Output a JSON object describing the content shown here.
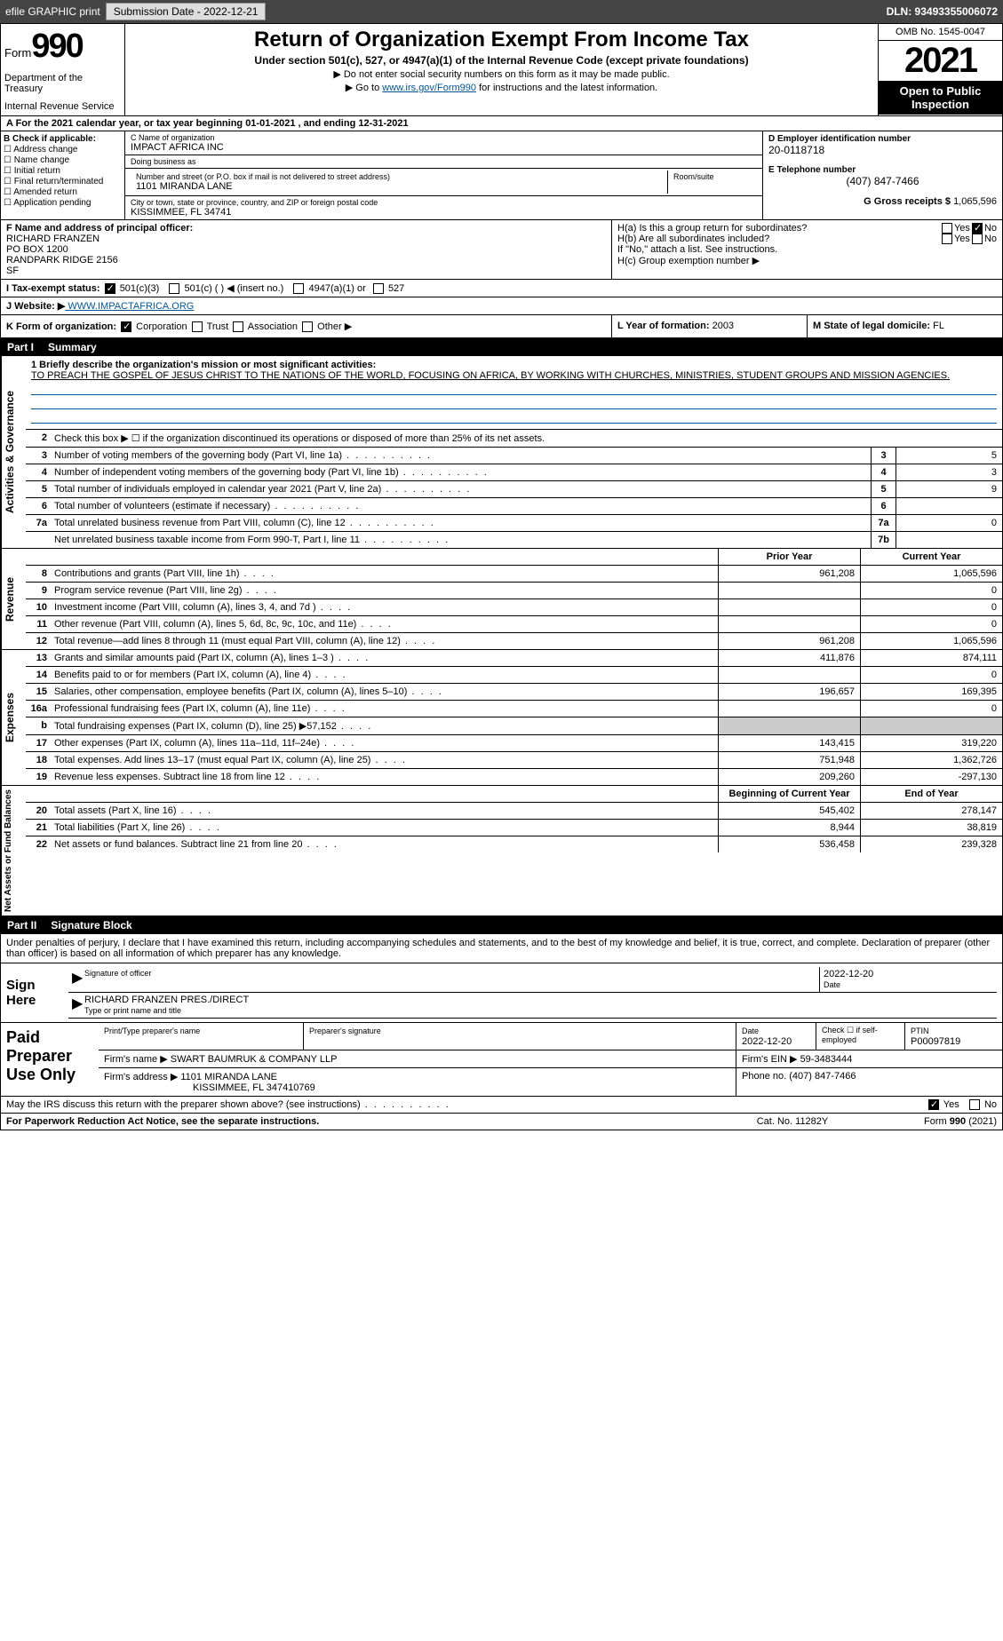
{
  "topbar": {
    "efile": "efile GRAPHIC print",
    "submission_label": "Submission Date - 2022-12-21",
    "dln_label": "DLN: 93493355006072"
  },
  "header": {
    "form_label": "Form",
    "form_number": "990",
    "dept": "Department of the Treasury",
    "irs": "Internal Revenue Service",
    "title": "Return of Organization Exempt From Income Tax",
    "sub": "Under section 501(c), 527, or 4947(a)(1) of the Internal Revenue Code (except private foundations)",
    "note1": "▶ Do not enter social security numbers on this form as it may be made public.",
    "note2_pre": "▶ Go to ",
    "note2_link": "www.irs.gov/Form990",
    "note2_post": " for instructions and the latest information.",
    "omb": "OMB No. 1545-0047",
    "year": "2021",
    "public": "Open to Public Inspection"
  },
  "rowA": "A For the 2021 calendar year, or tax year beginning 01-01-2021   , and ending 12-31-2021",
  "entityB": {
    "title": "B Check if applicable:",
    "items": [
      "Address change",
      "Name change",
      "Initial return",
      "Final return/terminated",
      "Amended return",
      "Application pending"
    ]
  },
  "entityC": {
    "name_lbl": "C Name of organization",
    "name": "IMPACT AFRICA INC",
    "dba_lbl": "Doing business as",
    "dba": "",
    "street_lbl": "Number and street (or P.O. box if mail is not delivered to street address)",
    "street": "1101 MIRANDA LANE",
    "room_lbl": "Room/suite",
    "city_lbl": "City or town, state or province, country, and ZIP or foreign postal code",
    "city": "KISSIMMEE, FL  34741"
  },
  "entityDEG": {
    "d_lbl": "D Employer identification number",
    "d": "20-0118718",
    "e_lbl": "E Telephone number",
    "e": "(407) 847-7466",
    "g_lbl": "G Gross receipts $",
    "g": "1,065,596"
  },
  "rowF": {
    "lbl": "F  Name and address of principal officer:",
    "name": "RICHARD FRANZEN",
    "addr1": "PO BOX 1200",
    "addr2": "RANDPARK RIDGE    2156",
    "addr3": "SF"
  },
  "rowH": {
    "a": "H(a)  Is this a group return for subordinates?",
    "b": "H(b)  Are all subordinates included?",
    "note": "If \"No,\" attach a list. See instructions.",
    "c": "H(c)  Group exemption number ▶",
    "yes": "Yes",
    "no": "No"
  },
  "rowI": {
    "lbl": "I   Tax-exempt status:",
    "opts": [
      "501(c)(3)",
      "501(c) (  ) ◀ (insert no.)",
      "4947(a)(1) or",
      "527"
    ]
  },
  "rowJ": {
    "lbl": "J   Website: ▶",
    "val": " WWW.IMPACTAFRICA.ORG"
  },
  "rowK": {
    "k1_lbl": "K Form of organization:",
    "k1_opts": [
      "Corporation",
      "Trust",
      "Association",
      "Other ▶"
    ],
    "k2_lbl": "L Year of formation:",
    "k2": "2003",
    "k3_lbl": "M State of legal domicile:",
    "k3": "FL"
  },
  "part1": {
    "lbl": "Part I",
    "title": "Summary"
  },
  "governance": {
    "vtab": "Activities & Governance",
    "l1_lbl": "1  Briefly describe the organization's mission or most significant activities:",
    "l1": "TO PREACH THE GOSPEL OF JESUS CHRIST TO THE NATIONS OF THE WORLD, FOCUSING ON AFRICA, BY WORKING WITH CHURCHES, MINISTRIES, STUDENT GROUPS AND MISSION AGENCIES.",
    "l2": "Check this box ▶ ☐  if the organization discontinued its operations or disposed of more than 25% of its net assets.",
    "rows": [
      {
        "n": "3",
        "t": "Number of voting members of the governing body (Part VI, line 1a)",
        "b": "3",
        "v": "5"
      },
      {
        "n": "4",
        "t": "Number of independent voting members of the governing body (Part VI, line 1b)",
        "b": "4",
        "v": "3"
      },
      {
        "n": "5",
        "t": "Total number of individuals employed in calendar year 2021 (Part V, line 2a)",
        "b": "5",
        "v": "9"
      },
      {
        "n": "6",
        "t": "Total number of volunteers (estimate if necessary)",
        "b": "6",
        "v": ""
      },
      {
        "n": "7a",
        "t": "Total unrelated business revenue from Part VIII, column (C), line 12",
        "b": "7a",
        "v": "0"
      },
      {
        "n": "",
        "t": "Net unrelated business taxable income from Form 990-T, Part I, line 11",
        "b": "7b",
        "v": ""
      }
    ]
  },
  "revenue": {
    "vtab": "Revenue",
    "hd1": "Prior Year",
    "hd2": "Current Year",
    "rows": [
      {
        "n": "8",
        "t": "Contributions and grants (Part VIII, line 1h)",
        "c1": "961,208",
        "c2": "1,065,596"
      },
      {
        "n": "9",
        "t": "Program service revenue (Part VIII, line 2g)",
        "c1": "",
        "c2": "0"
      },
      {
        "n": "10",
        "t": "Investment income (Part VIII, column (A), lines 3, 4, and 7d )",
        "c1": "",
        "c2": "0"
      },
      {
        "n": "11",
        "t": "Other revenue (Part VIII, column (A), lines 5, 6d, 8c, 9c, 10c, and 11e)",
        "c1": "",
        "c2": "0"
      },
      {
        "n": "12",
        "t": "Total revenue—add lines 8 through 11 (must equal Part VIII, column (A), line 12)",
        "c1": "961,208",
        "c2": "1,065,596"
      }
    ]
  },
  "expenses": {
    "vtab": "Expenses",
    "rows": [
      {
        "n": "13",
        "t": "Grants and similar amounts paid (Part IX, column (A), lines 1–3 )",
        "c1": "411,876",
        "c2": "874,111"
      },
      {
        "n": "14",
        "t": "Benefits paid to or for members (Part IX, column (A), line 4)",
        "c1": "",
        "c2": "0"
      },
      {
        "n": "15",
        "t": "Salaries, other compensation, employee benefits (Part IX, column (A), lines 5–10)",
        "c1": "196,657",
        "c2": "169,395"
      },
      {
        "n": "16a",
        "t": "Professional fundraising fees (Part IX, column (A), line 11e)",
        "c1": "",
        "c2": "0"
      },
      {
        "n": "b",
        "t": "Total fundraising expenses (Part IX, column (D), line 25) ▶57,152",
        "c1": "GRAY",
        "c2": "GRAY"
      },
      {
        "n": "17",
        "t": "Other expenses (Part IX, column (A), lines 11a–11d, 11f–24e)",
        "c1": "143,415",
        "c2": "319,220"
      },
      {
        "n": "18",
        "t": "Total expenses. Add lines 13–17 (must equal Part IX, column (A), line 25)",
        "c1": "751,948",
        "c2": "1,362,726"
      },
      {
        "n": "19",
        "t": "Revenue less expenses. Subtract line 18 from line 12",
        "c1": "209,260",
        "c2": "-297,130"
      }
    ]
  },
  "netassets": {
    "vtab": "Net Assets or Fund Balances",
    "hd1": "Beginning of Current Year",
    "hd2": "End of Year",
    "rows": [
      {
        "n": "20",
        "t": "Total assets (Part X, line 16)",
        "c1": "545,402",
        "c2": "278,147"
      },
      {
        "n": "21",
        "t": "Total liabilities (Part X, line 26)",
        "c1": "8,944",
        "c2": "38,819"
      },
      {
        "n": "22",
        "t": "Net assets or fund balances. Subtract line 21 from line 20",
        "c1": "536,458",
        "c2": "239,328"
      }
    ]
  },
  "part2": {
    "lbl": "Part II",
    "title": "Signature Block"
  },
  "sig": {
    "penalty": "Under penalties of perjury, I declare that I have examined this return, including accompanying schedules and statements, and to the best of my knowledge and belief, it is true, correct, and complete. Declaration of preparer (other than officer) is based on all information of which preparer has any knowledge.",
    "sign_here": "Sign Here",
    "sig_lbl": "Signature of officer",
    "date": "2022-12-20",
    "date_lbl": "Date",
    "name": "RICHARD FRANZEN  PRES./DIRECT",
    "name_lbl": "Type or print name and title"
  },
  "prep": {
    "title": "Paid Preparer Use Only",
    "r1": {
      "c1_lbl": "Print/Type preparer's name",
      "c1": "",
      "c2_lbl": "Preparer's signature",
      "c2": "",
      "c3_lbl": "Date",
      "c3": "2022-12-20",
      "c4_lbl": "Check ☐ if self-employed",
      "c5_lbl": "PTIN",
      "c5": "P00097819"
    },
    "r2": {
      "lbl": "Firm's name    ▶",
      "val": "SWART BAUMRUK & COMPANY LLP",
      "ein_lbl": "Firm's EIN ▶",
      "ein": "59-3483444"
    },
    "r3": {
      "lbl": "Firm's address ▶",
      "val": "1101 MIRANDA LANE",
      "val2": "KISSIMMEE, FL  347410769",
      "ph_lbl": "Phone no.",
      "ph": "(407) 847-7466"
    }
  },
  "may": {
    "t": "May the IRS discuss this return with the preparer shown above? (see instructions)",
    "yes": "Yes",
    "no": "No"
  },
  "footer": {
    "f1": "For Paperwork Reduction Act Notice, see the separate instructions.",
    "f2": "Cat. No. 11282Y",
    "f3": "Form 990 (2021)"
  }
}
